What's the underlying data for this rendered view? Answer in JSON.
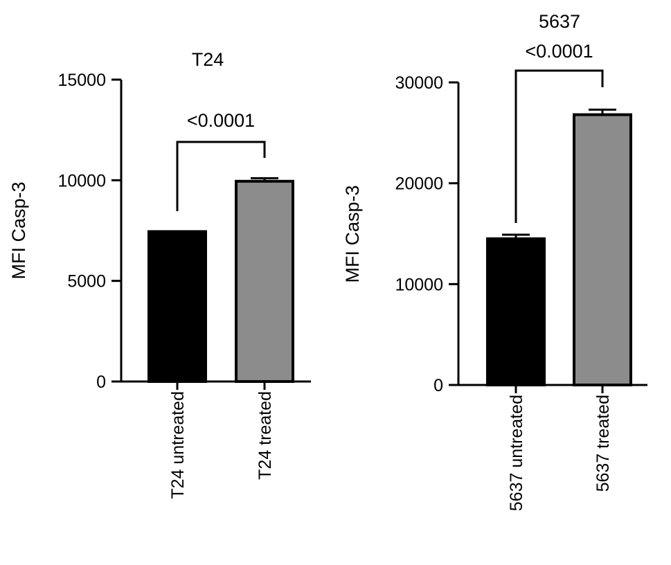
{
  "chart_data": [
    {
      "type": "bar",
      "title": "T24",
      "ylabel": "MFI Casp-3",
      "xlabel": "",
      "ylim": [
        0,
        15000
      ],
      "yticks": [
        0,
        5000,
        10000,
        15000
      ],
      "categories": [
        "T24 untreated",
        "T24 treated"
      ],
      "values": [
        7450,
        9950
      ],
      "errors": [
        0,
        150
      ],
      "colors": [
        "#000000",
        "#8c8c8c"
      ],
      "significance": "<0.0001",
      "grid": false
    },
    {
      "type": "bar",
      "title": "5637",
      "ylabel": "MFI Casp-3",
      "xlabel": "",
      "ylim": [
        0,
        30000
      ],
      "yticks": [
        0,
        10000,
        20000,
        30000
      ],
      "categories": [
        "5637 untreated",
        "5637 treated"
      ],
      "values": [
        14500,
        26800
      ],
      "errors": [
        400,
        500
      ],
      "colors": [
        "#000000",
        "#8c8c8c"
      ],
      "significance": "<0.0001",
      "grid": false
    }
  ]
}
